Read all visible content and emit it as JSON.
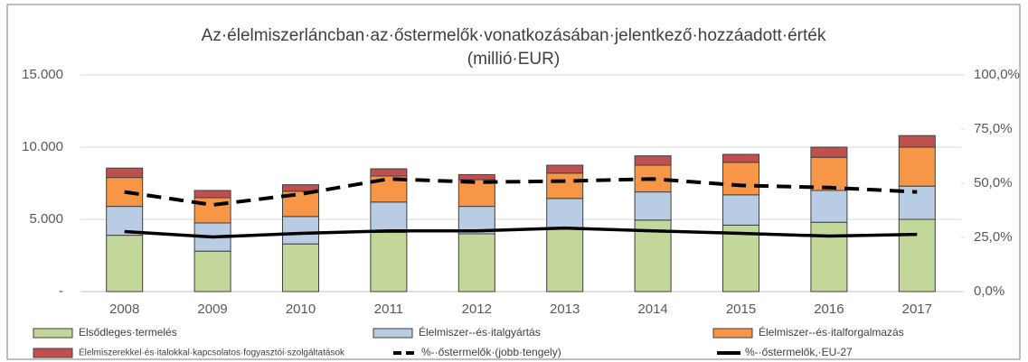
{
  "chart_data": {
    "type": "bar",
    "stacked": true,
    "title": "Az·élelmiszerláncban·az·őstermelők·vonatkozásában·jelentkező·hozzáadott·érték",
    "subtitle": "(millió·EUR)",
    "categories": [
      "2008",
      "2009",
      "2010",
      "2011",
      "2012",
      "2013",
      "2014",
      "2015",
      "2016",
      "2017"
    ],
    "series": [
      {
        "name": "Elsődleges·termelés",
        "color": "#c4d79b",
        "values": [
          3900,
          2800,
          3300,
          4100,
          4000,
          4400,
          4950,
          4600,
          4800,
          5000
        ]
      },
      {
        "name": "Élelmiszer--és·italgyártás",
        "color": "#b8cce4",
        "values": [
          2000,
          1950,
          1900,
          2100,
          1900,
          2050,
          1950,
          2100,
          2200,
          2300
        ]
      },
      {
        "name": "Élelmiszer--és·italforgalmazás",
        "color": "#f79646",
        "values": [
          2000,
          1750,
          1750,
          1800,
          1850,
          1750,
          1850,
          2250,
          2300,
          2700
        ]
      },
      {
        "name": "Élelmiszerekkel·és·italokkal·kapcsolatos·fogyasztói·szolgáltatások",
        "color": "#c0504d",
        "values": [
          650,
          500,
          450,
          500,
          350,
          550,
          650,
          550,
          700,
          800
        ]
      },
      {
        "name": "%-·őstermelők·(jobb·tengely)",
        "type": "line",
        "axis": "y2",
        "dashed": true,
        "color": "#000000",
        "values": [
          46,
          40,
          45,
          52,
          50.5,
          51,
          52,
          49,
          48,
          46
        ]
      },
      {
        "name": "%-·őstermelők,·EU-27",
        "type": "line",
        "axis": "y2",
        "dashed": false,
        "color": "#000000",
        "values": [
          27.7,
          25.2,
          26.9,
          28,
          28,
          29.3,
          28,
          26.9,
          25.6,
          26.4
        ]
      }
    ],
    "ylim": [
      0,
      15000
    ],
    "yticks": [
      {
        "value": 0,
        "label": "-"
      },
      {
        "value": 5000,
        "label": "5.000"
      },
      {
        "value": 10000,
        "label": "10.000"
      },
      {
        "value": 15000,
        "label": "15.000"
      }
    ],
    "y2lim": [
      0,
      100
    ],
    "y2ticks": [
      {
        "value": 0,
        "label": "0,0%"
      },
      {
        "value": 25,
        "label": "25,0%"
      },
      {
        "value": 50,
        "label": "50,0%"
      },
      {
        "value": 75,
        "label": "75,0%"
      },
      {
        "value": 100,
        "label": "100,0%"
      }
    ],
    "grid": true,
    "legend": "bottom"
  }
}
